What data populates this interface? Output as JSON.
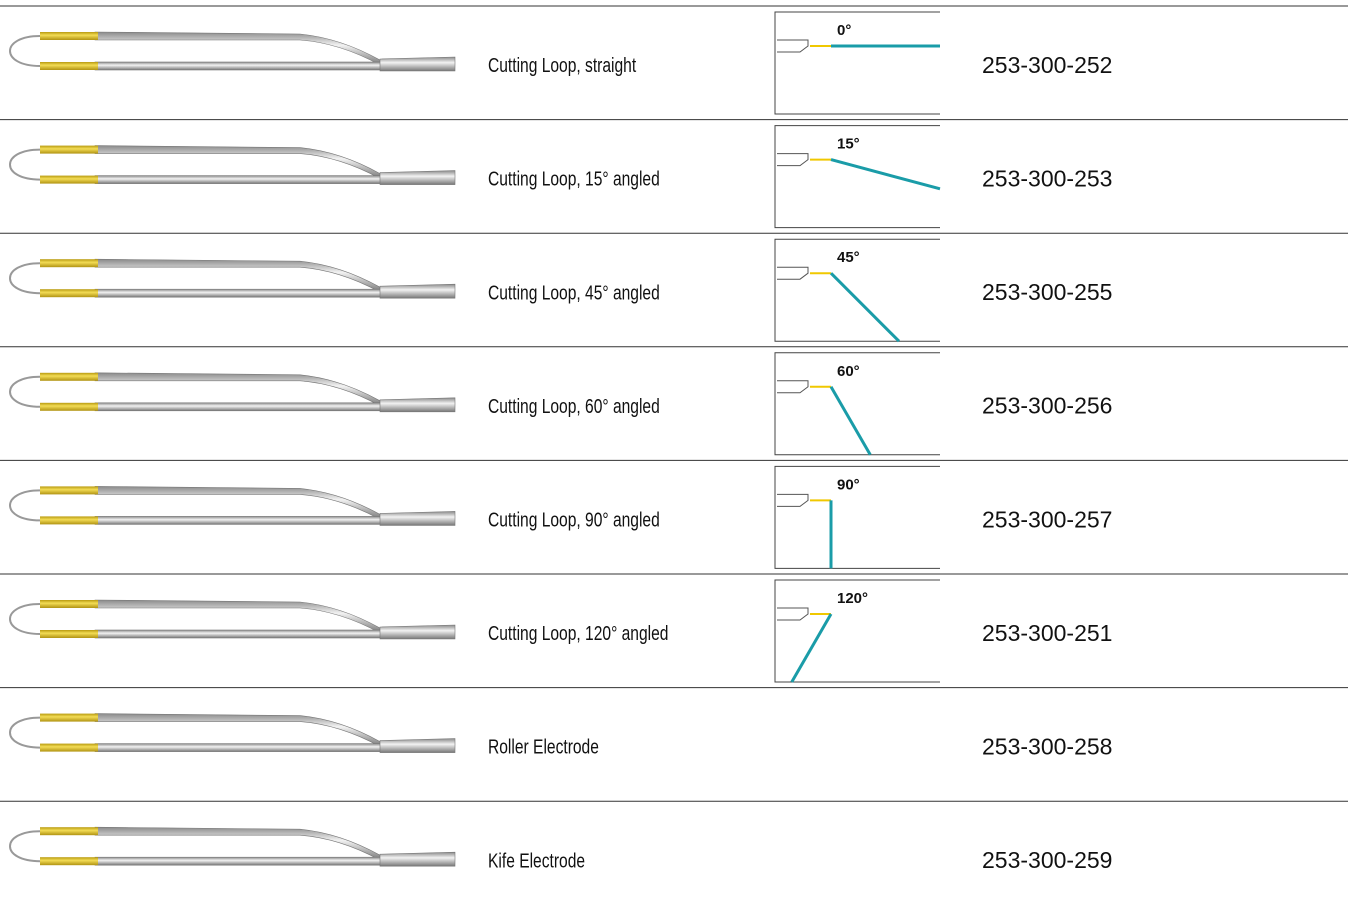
{
  "rows": [
    {
      "name": "Cutting Loop, straight",
      "angle": {
        "value": 0,
        "label": "0°"
      },
      "part_number": "253-300-252"
    },
    {
      "name": "Cutting Loop, 15° angled",
      "angle": {
        "value": 15,
        "label": "15°"
      },
      "part_number": "253-300-253"
    },
    {
      "name": "Cutting Loop, 45° angled",
      "angle": {
        "value": 45,
        "label": "45°"
      },
      "part_number": "253-300-255"
    },
    {
      "name": "Cutting Loop, 60° angled",
      "angle": {
        "value": 60,
        "label": "60°"
      },
      "part_number": "253-300-256"
    },
    {
      "name": "Cutting Loop, 90° angled",
      "angle": {
        "value": 90,
        "label": "90°"
      },
      "part_number": "253-300-257"
    },
    {
      "name": "Cutting Loop, 120° angled",
      "angle": {
        "value": 120,
        "label": "120°"
      },
      "part_number": "253-300-251"
    },
    {
      "name": "Roller Electrode",
      "part_number": "253-300-258"
    },
    {
      "name": "Kife Electrode",
      "part_number": "253-300-259"
    }
  ]
}
